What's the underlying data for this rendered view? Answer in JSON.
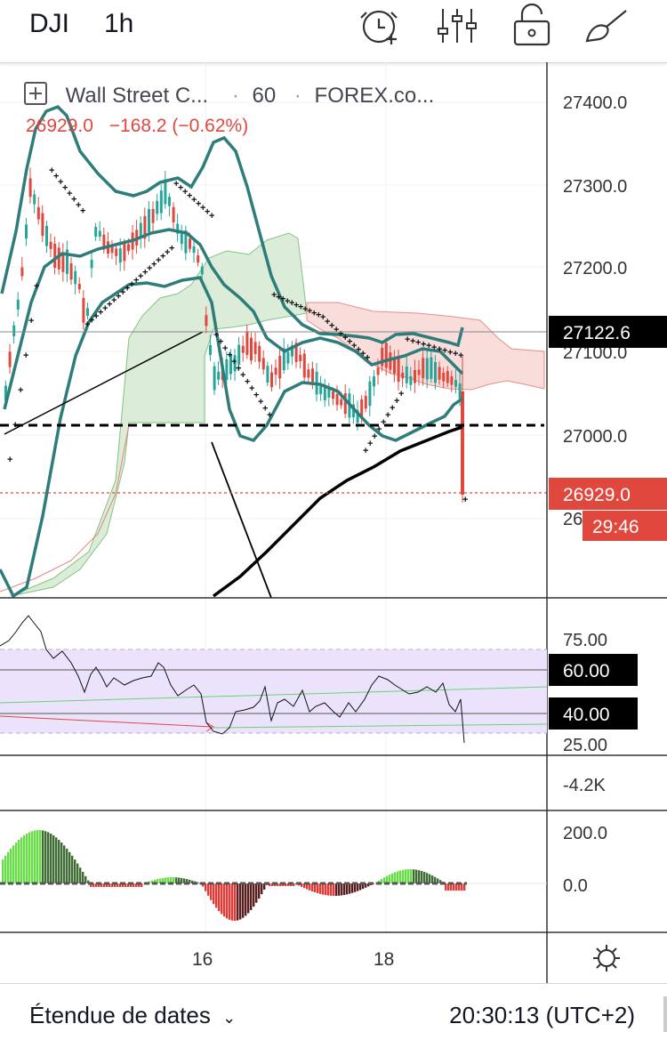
{
  "header": {
    "symbol": "DJI",
    "interval": "1h",
    "icons": [
      "alarm-add-icon",
      "indicators-icon",
      "lock-icon",
      "drawing-brush-icon"
    ]
  },
  "legend": {
    "instrument": "Wall Street C...",
    "separator": "·",
    "timeframe": "60",
    "source": "FOREX.co...",
    "close_value": "26929.0",
    "change": "−168.2 (−0.62%)"
  },
  "price_axis": {
    "labels": [
      "27400.0",
      "27300.0",
      "27200.0",
      "27100.0",
      "27000.0",
      "26900.0"
    ],
    "crosshair_price": "27122.6",
    "last_price": "26929.0",
    "countdown": "29:46"
  },
  "rsi_axis": {
    "labels": [
      "75.00",
      "25.00"
    ],
    "upper_band": "60.00",
    "lower_band": "40.00"
  },
  "volume_axis": {
    "label": "-4.2K"
  },
  "macd_axis": {
    "labels": [
      "200.0",
      "0.0"
    ]
  },
  "time_axis": {
    "labels": [
      "16",
      "18"
    ]
  },
  "footer": {
    "date_range": "Étendue de dates",
    "clock": "20:30:13 (UTC+2)"
  },
  "colors": {
    "up": "#26a69a",
    "down": "#e0483e",
    "bollinger": "#2e7d7a",
    "cloud_green": "#cfe8cf",
    "cloud_red": "#f6d5d3",
    "rsi_band": "#e9e2fb",
    "macd_up": "#66dd44",
    "macd_down": "#e53935"
  }
}
